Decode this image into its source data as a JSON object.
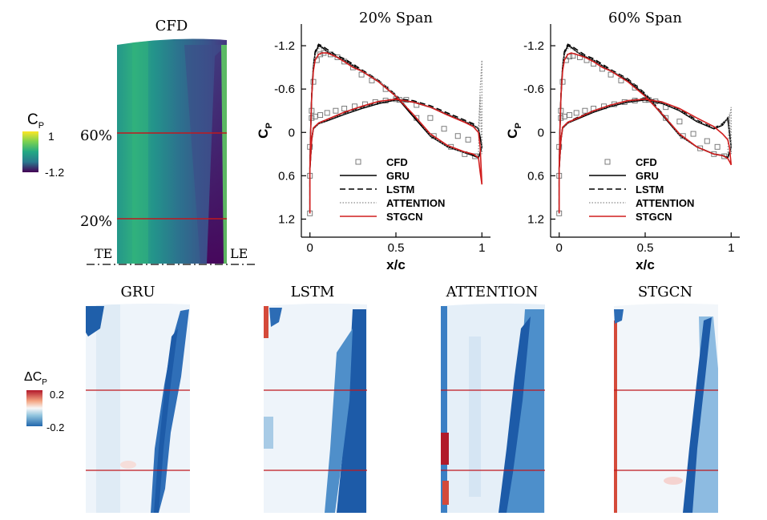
{
  "colors": {
    "cfd_contour": [
      "#45085a",
      "#3f4788",
      "#2e6d8e",
      "#21908d",
      "#3bbb75",
      "#a3da37",
      "#fde725"
    ],
    "error_contour": [
      "#1d5ba8",
      "#4d8fcb",
      "#a8cbe6",
      "#f2f6fa",
      "#f6c4bd",
      "#d44a3a",
      "#b11a2a"
    ],
    "span_line": "#c0181e",
    "cfd_marker": "#6e6e6e",
    "gru": "#000000",
    "lstm": "#000000",
    "attention": "#8a8a8a",
    "stgcn": "#d11e1e"
  },
  "cfd_panel": {
    "title": "CFD",
    "colorbar": {
      "label": "C",
      "label_sub": "P",
      "max_label": "1",
      "min_label": "-1.2"
    },
    "span_labels": [
      "60%",
      "20%"
    ],
    "edge_labels": {
      "trailing": "TE",
      "leading": "LE"
    }
  },
  "error_panels": {
    "colorbar": {
      "label": "ΔC",
      "label_sub": "P",
      "max_label": "0.2",
      "min_label": "-0.2"
    },
    "titles": [
      "GRU",
      "LSTM",
      "ATTENTION",
      "STGCN"
    ]
  },
  "chart_data": [
    {
      "type": "line",
      "title": "20% Span",
      "xlabel": "x/c",
      "ylabel": "C",
      "ylabel_sub": "P",
      "xlim": [
        -0.05,
        1.05
      ],
      "ylim": [
        1.45,
        -1.5
      ],
      "xticks": [
        0,
        0.5,
        1
      ],
      "xtick_labels": [
        "0",
        "0.5",
        "1"
      ],
      "yticks": [
        -1.2,
        -0.6,
        0,
        0.6,
        1.2
      ],
      "ytick_labels": [
        "-1.2",
        "-0.6",
        "0",
        "0.6",
        "1.2"
      ],
      "legend": [
        "CFD",
        "GRU",
        "LSTM",
        "ATTENTION",
        "STGCN"
      ],
      "series": [
        {
          "name": "CFD",
          "style": "markers",
          "x": [
            0,
            0,
            0,
            0.01,
            0.02,
            0.04,
            0.06,
            0.08,
            0.12,
            0.16,
            0.2,
            0.25,
            0.3,
            0.36,
            0.44,
            0.52,
            0.62,
            0.72,
            0.82,
            0.9,
            0.96,
            0.01,
            0.03,
            0.06,
            0.1,
            0.15,
            0.2,
            0.26,
            0.32,
            0.38,
            0.44,
            0.5,
            0.56,
            0.62,
            0.7,
            0.78,
            0.86,
            0.92
          ],
          "y": [
            1.12,
            0.6,
            0.2,
            -0.3,
            -0.7,
            -1.0,
            -1.08,
            -1.1,
            -1.08,
            -1.04,
            -0.98,
            -0.9,
            -0.8,
            -0.72,
            -0.6,
            -0.45,
            -0.2,
            0.05,
            0.2,
            0.3,
            0.33,
            -0.2,
            -0.22,
            -0.24,
            -0.27,
            -0.3,
            -0.33,
            -0.36,
            -0.39,
            -0.42,
            -0.44,
            -0.46,
            -0.45,
            -0.38,
            -0.2,
            -0.05,
            0.05,
            0.1
          ]
        },
        {
          "name": "GRU",
          "style": "solid",
          "x": [
            0,
            0,
            0.005,
            0.01,
            0.02,
            0.03,
            0.05,
            0.07,
            0.1,
            0.15,
            0.2,
            0.3,
            0.4,
            0.5,
            0.6,
            0.7,
            0.8,
            0.9,
            0.95,
            0.98,
            1.0,
            0.98,
            0.95,
            0.9,
            0.8,
            0.7,
            0.6,
            0.5,
            0.4,
            0.3,
            0.2,
            0.1,
            0.05,
            0.02,
            0.01,
            0
          ],
          "y": [
            1.12,
            0.5,
            -0.1,
            -0.5,
            -0.9,
            -1.1,
            -1.2,
            -1.18,
            -1.12,
            -1.05,
            -1.0,
            -0.85,
            -0.7,
            -0.5,
            -0.22,
            0.05,
            0.2,
            0.28,
            0.32,
            0.35,
            0.2,
            -0.05,
            -0.1,
            -0.15,
            -0.25,
            -0.35,
            -0.42,
            -0.45,
            -0.4,
            -0.33,
            -0.25,
            -0.16,
            -0.12,
            -0.05,
            0.1,
            0.5
          ]
        },
        {
          "name": "LSTM",
          "style": "dashed",
          "x": [
            0,
            0,
            0.005,
            0.01,
            0.02,
            0.03,
            0.05,
            0.07,
            0.1,
            0.15,
            0.2,
            0.3,
            0.4,
            0.5,
            0.6,
            0.7,
            0.8,
            0.9,
            0.95,
            0.98,
            1.0,
            0.98,
            0.95,
            0.9,
            0.8,
            0.7,
            0.6,
            0.5,
            0.4,
            0.3,
            0.2,
            0.1,
            0.05,
            0.02,
            0.01,
            0
          ],
          "y": [
            1.12,
            0.5,
            -0.1,
            -0.52,
            -0.92,
            -1.12,
            -1.22,
            -1.2,
            -1.15,
            -1.07,
            -1.02,
            -0.87,
            -0.72,
            -0.52,
            -0.24,
            0.04,
            0.2,
            0.28,
            0.32,
            0.35,
            0.2,
            -0.05,
            -0.12,
            -0.17,
            -0.27,
            -0.37,
            -0.44,
            -0.47,
            -0.42,
            -0.35,
            -0.27,
            -0.18,
            -0.13,
            -0.06,
            0.1,
            0.5
          ]
        },
        {
          "name": "ATTENTION",
          "style": "dotted",
          "x": [
            0,
            0,
            0.005,
            0.01,
            0.02,
            0.03,
            0.05,
            0.07,
            0.1,
            0.15,
            0.2,
            0.3,
            0.4,
            0.5,
            0.6,
            0.7,
            0.8,
            0.9,
            0.95,
            0.98,
            0.99,
            1.0,
            1.0,
            0.99,
            0.98,
            0.95,
            0.9,
            0.8,
            0.7,
            0.6,
            0.5,
            0.4,
            0.3,
            0.2,
            0.1,
            0.05,
            0.02,
            0.01,
            0
          ],
          "y": [
            1.12,
            0.5,
            -0.1,
            -0.5,
            -0.9,
            -1.08,
            -1.16,
            -1.16,
            -1.12,
            -1.06,
            -1.0,
            -0.86,
            -0.72,
            -0.52,
            -0.25,
            0.04,
            0.2,
            0.28,
            0.3,
            0.3,
            -0.6,
            -1.0,
            0.3,
            -0.5,
            -0.05,
            -0.1,
            -0.15,
            -0.25,
            -0.35,
            -0.42,
            -0.46,
            -0.41,
            -0.34,
            -0.26,
            -0.17,
            -0.12,
            -0.05,
            0.1,
            0.5
          ]
        },
        {
          "name": "STGCN",
          "style": "solid",
          "x": [
            0,
            0,
            0.005,
            0.01,
            0.02,
            0.03,
            0.05,
            0.07,
            0.1,
            0.15,
            0.2,
            0.25,
            0.3,
            0.4,
            0.5,
            0.6,
            0.7,
            0.8,
            0.9,
            0.95,
            0.98,
            0.99,
            1.0,
            0.99,
            0.98,
            0.95,
            0.9,
            0.8,
            0.7,
            0.6,
            0.5,
            0.4,
            0.3,
            0.2,
            0.1,
            0.05,
            0.02,
            0.01,
            0
          ],
          "y": [
            1.12,
            0.5,
            -0.1,
            -0.5,
            -0.85,
            -1.0,
            -1.08,
            -1.1,
            -1.1,
            -1.05,
            -0.98,
            -0.9,
            -0.85,
            -0.7,
            -0.5,
            -0.25,
            0.02,
            0.18,
            0.27,
            0.3,
            0.35,
            0.55,
            0.72,
            0.2,
            0.0,
            -0.08,
            -0.14,
            -0.24,
            -0.35,
            -0.42,
            -0.46,
            -0.43,
            -0.36,
            -0.28,
            -0.18,
            -0.13,
            -0.06,
            0.1,
            0.5
          ]
        }
      ]
    },
    {
      "type": "line",
      "title": "60% Span",
      "xlabel": "x/c",
      "ylabel": "C",
      "ylabel_sub": "P",
      "xlim": [
        -0.05,
        1.05
      ],
      "ylim": [
        1.45,
        -1.5
      ],
      "xticks": [
        0,
        0.5,
        1
      ],
      "xtick_labels": [
        "0",
        "0.5",
        "1"
      ],
      "yticks": [
        -1.2,
        -0.6,
        0,
        0.6,
        1.2
      ],
      "ytick_labels": [
        "-1.2",
        "-0.6",
        "0",
        "0.6",
        "1.2"
      ],
      "legend": [
        "CFD",
        "GRU",
        "LSTM",
        "ATTENTION",
        "STGCN"
      ],
      "series": [
        {
          "name": "CFD",
          "style": "markers",
          "x": [
            0,
            0,
            0,
            0.01,
            0.02,
            0.04,
            0.06,
            0.08,
            0.12,
            0.16,
            0.2,
            0.25,
            0.3,
            0.36,
            0.44,
            0.52,
            0.62,
            0.72,
            0.82,
            0.9,
            0.96,
            0.01,
            0.03,
            0.06,
            0.1,
            0.15,
            0.2,
            0.26,
            0.32,
            0.38,
            0.44,
            0.5,
            0.56,
            0.62,
            0.7,
            0.78,
            0.86,
            0.92
          ],
          "y": [
            1.12,
            0.6,
            0.2,
            -0.3,
            -0.7,
            -1.0,
            -1.05,
            -1.06,
            -1.04,
            -1.0,
            -0.95,
            -0.88,
            -0.8,
            -0.72,
            -0.62,
            -0.45,
            -0.2,
            0.05,
            0.22,
            0.3,
            0.33,
            -0.2,
            -0.22,
            -0.24,
            -0.27,
            -0.3,
            -0.33,
            -0.36,
            -0.39,
            -0.42,
            -0.44,
            -0.45,
            -0.43,
            -0.35,
            -0.15,
            0.02,
            0.12,
            0.2
          ]
        },
        {
          "name": "GRU",
          "style": "solid",
          "x": [
            0,
            0,
            0.005,
            0.01,
            0.02,
            0.03,
            0.05,
            0.07,
            0.1,
            0.15,
            0.2,
            0.3,
            0.4,
            0.5,
            0.6,
            0.7,
            0.8,
            0.9,
            0.95,
            0.98,
            1.0,
            0.98,
            0.95,
            0.9,
            0.8,
            0.7,
            0.6,
            0.5,
            0.4,
            0.3,
            0.2,
            0.1,
            0.05,
            0.02,
            0.01,
            0
          ],
          "y": [
            1.12,
            0.5,
            -0.1,
            -0.5,
            -0.9,
            -1.1,
            -1.2,
            -1.18,
            -1.12,
            -1.05,
            -1.0,
            -0.85,
            -0.72,
            -0.52,
            -0.24,
            0.04,
            0.2,
            0.3,
            0.32,
            0.35,
            0.2,
            -0.2,
            -0.1,
            -0.05,
            -0.15,
            -0.3,
            -0.4,
            -0.45,
            -0.42,
            -0.36,
            -0.28,
            -0.18,
            -0.13,
            -0.06,
            0.1,
            0.5
          ]
        },
        {
          "name": "LSTM",
          "style": "dashed",
          "x": [
            0,
            0,
            0.005,
            0.01,
            0.02,
            0.03,
            0.05,
            0.07,
            0.1,
            0.15,
            0.2,
            0.3,
            0.4,
            0.5,
            0.6,
            0.7,
            0.8,
            0.9,
            0.95,
            0.98,
            1.0,
            0.98,
            0.95,
            0.9,
            0.8,
            0.7,
            0.6,
            0.5,
            0.4,
            0.3,
            0.2,
            0.1,
            0.05,
            0.02,
            0.01,
            0
          ],
          "y": [
            1.12,
            0.5,
            -0.1,
            -0.52,
            -0.92,
            -1.12,
            -1.22,
            -1.2,
            -1.15,
            -1.07,
            -1.02,
            -0.87,
            -0.74,
            -0.54,
            -0.26,
            0.03,
            0.2,
            0.3,
            0.32,
            0.35,
            0.2,
            -0.2,
            -0.12,
            -0.06,
            -0.17,
            -0.32,
            -0.42,
            -0.47,
            -0.44,
            -0.38,
            -0.3,
            -0.2,
            -0.14,
            -0.07,
            0.1,
            0.5
          ]
        },
        {
          "name": "ATTENTION",
          "style": "dotted",
          "x": [
            0,
            0,
            0.005,
            0.01,
            0.02,
            0.03,
            0.05,
            0.07,
            0.1,
            0.15,
            0.2,
            0.3,
            0.4,
            0.5,
            0.6,
            0.7,
            0.8,
            0.9,
            0.95,
            0.98,
            0.99,
            1.0,
            1.0,
            0.99,
            0.98,
            0.95,
            0.9,
            0.8,
            0.7,
            0.6,
            0.5,
            0.4,
            0.3,
            0.2,
            0.1,
            0.05,
            0.02,
            0.01,
            0
          ],
          "y": [
            1.12,
            0.5,
            -0.1,
            -0.5,
            -0.9,
            -1.08,
            -1.16,
            -1.16,
            -1.12,
            -1.06,
            -1.0,
            -0.86,
            -0.73,
            -0.53,
            -0.26,
            0.04,
            0.2,
            0.3,
            0.31,
            0.3,
            -0.2,
            -0.35,
            0.3,
            -0.25,
            -0.2,
            -0.11,
            -0.06,
            -0.16,
            -0.31,
            -0.41,
            -0.46,
            -0.43,
            -0.37,
            -0.29,
            -0.19,
            -0.13,
            -0.06,
            0.1,
            0.5
          ]
        },
        {
          "name": "STGCN",
          "style": "solid",
          "x": [
            0,
            0,
            0.005,
            0.01,
            0.02,
            0.03,
            0.05,
            0.07,
            0.1,
            0.15,
            0.2,
            0.25,
            0.3,
            0.4,
            0.5,
            0.6,
            0.7,
            0.8,
            0.9,
            0.95,
            0.98,
            0.99,
            1.0,
            0.99,
            0.98,
            0.95,
            0.9,
            0.8,
            0.7,
            0.6,
            0.5,
            0.4,
            0.3,
            0.2,
            0.1,
            0.05,
            0.02,
            0.01,
            0
          ],
          "y": [
            1.12,
            0.5,
            -0.1,
            -0.5,
            -0.85,
            -1.0,
            -1.08,
            -1.1,
            -1.08,
            -1.04,
            -0.98,
            -0.9,
            -0.85,
            -0.7,
            -0.5,
            -0.25,
            0.02,
            0.2,
            0.3,
            0.32,
            0.36,
            0.4,
            0.45,
            0.2,
            0.1,
            0.02,
            -0.08,
            -0.2,
            -0.33,
            -0.42,
            -0.46,
            -0.44,
            -0.38,
            -0.3,
            -0.19,
            -0.14,
            -0.07,
            0.1,
            0.5
          ]
        }
      ]
    }
  ]
}
